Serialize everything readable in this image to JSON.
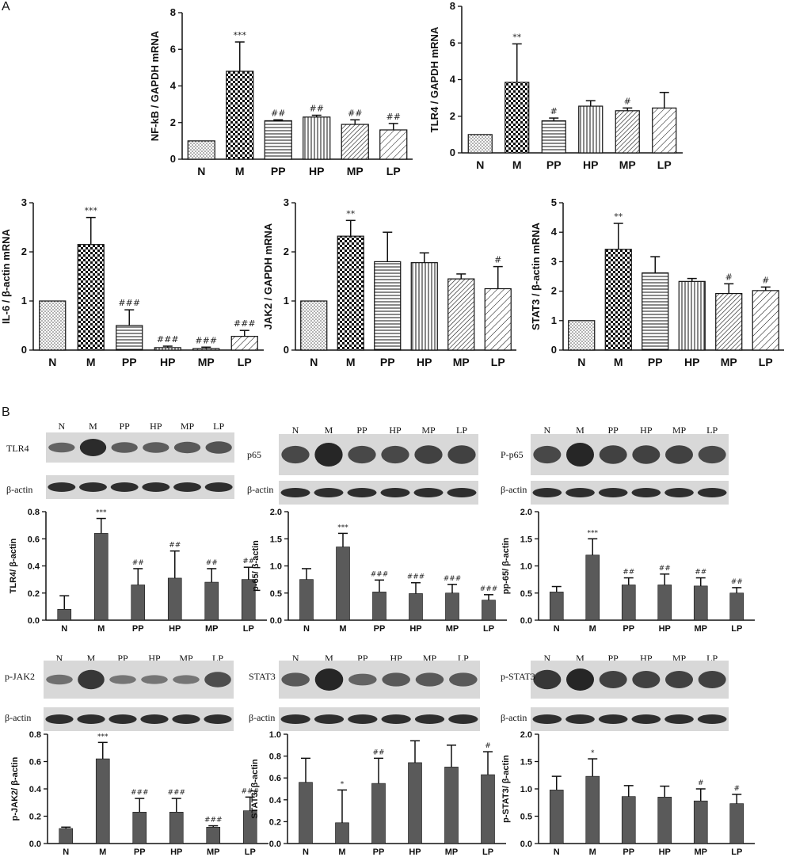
{
  "panel_labels": {
    "a": "A",
    "b": "B"
  },
  "colors": {
    "qpcr_bar_stroke": "#111111",
    "western_bar_fill": "#5a5a5a",
    "axis": "#111111",
    "blot_bg": "#d8d8d8",
    "band": "#1c1c1c"
  },
  "groups": [
    "N",
    "M",
    "PP",
    "HP",
    "MP",
    "LP"
  ],
  "patterns": [
    "fine-dots",
    "checker",
    "horizontal-lines",
    "vertical-lines",
    "diagonal-dense",
    "diagonal-sparse"
  ],
  "chart_data": [
    {
      "id": "nfkb",
      "type": "bar",
      "ylabel": "NF-kB / GAPDH mRNA",
      "ylim": [
        0,
        8
      ],
      "yticks": [
        0,
        2,
        4,
        6,
        8
      ],
      "categories": [
        "N",
        "M",
        "PP",
        "HP",
        "MP",
        "LP"
      ],
      "values": [
        1.0,
        4.8,
        2.1,
        2.3,
        1.9,
        1.6
      ],
      "errors": [
        0.0,
        1.6,
        0.05,
        0.1,
        0.25,
        0.35
      ],
      "annotations": [
        "",
        "***",
        "##",
        "##",
        "##",
        "##"
      ]
    },
    {
      "id": "tlr4_mrna",
      "type": "bar",
      "ylabel": "TLR4 / GAPDH mRNA",
      "ylim": [
        0,
        8
      ],
      "yticks": [
        0,
        2,
        4,
        6,
        8
      ],
      "categories": [
        "N",
        "M",
        "PP",
        "HP",
        "MP",
        "LP"
      ],
      "values": [
        1.0,
        3.85,
        1.75,
        2.55,
        2.3,
        2.45
      ],
      "errors": [
        0.0,
        2.1,
        0.15,
        0.3,
        0.15,
        0.85
      ],
      "annotations": [
        "",
        "**",
        "#",
        "",
        "#",
        ""
      ]
    },
    {
      "id": "il6",
      "type": "bar",
      "ylabel": "IL-6 / β-actin mRNA",
      "ylim": [
        0,
        3
      ],
      "yticks": [
        0,
        1,
        2,
        3
      ],
      "categories": [
        "N",
        "M",
        "PP",
        "HP",
        "MP",
        "LP"
      ],
      "values": [
        1.0,
        2.15,
        0.5,
        0.05,
        0.03,
        0.28
      ],
      "errors": [
        0.0,
        0.55,
        0.32,
        0.03,
        0.03,
        0.12
      ],
      "annotations": [
        "",
        "***",
        "###",
        "###",
        "###",
        "###"
      ]
    },
    {
      "id": "jak2_mrna",
      "type": "bar",
      "ylabel": "JAK2 / GAPDH mRNA",
      "ylim": [
        0,
        3
      ],
      "yticks": [
        0,
        1,
        2,
        3
      ],
      "categories": [
        "N",
        "M",
        "PP",
        "HP",
        "MP",
        "LP"
      ],
      "values": [
        1.0,
        2.32,
        1.8,
        1.78,
        1.45,
        1.25
      ],
      "errors": [
        0.0,
        0.32,
        0.6,
        0.2,
        0.1,
        0.45
      ],
      "annotations": [
        "",
        "**",
        "",
        "",
        "",
        "#"
      ]
    },
    {
      "id": "stat3_mrna",
      "type": "bar",
      "ylabel": "STAT3 / β-actin mRNA",
      "ylim": [
        0,
        5
      ],
      "yticks": [
        0,
        1,
        2,
        3,
        4,
        5
      ],
      "categories": [
        "N",
        "M",
        "PP",
        "HP",
        "MP",
        "LP"
      ],
      "values": [
        1.0,
        3.42,
        2.62,
        2.33,
        1.92,
        2.02
      ],
      "errors": [
        0.0,
        0.88,
        0.55,
        0.1,
        0.33,
        0.12
      ],
      "annotations": [
        "",
        "**",
        "",
        "",
        "#",
        "#"
      ]
    },
    {
      "id": "wb_tlr4",
      "type": "bar",
      "ylabel": "TLR4/ β-actin",
      "ylim": [
        0,
        0.8
      ],
      "yticks": [
        0.0,
        0.2,
        0.4,
        0.6,
        0.8
      ],
      "categories": [
        "N",
        "M",
        "PP",
        "HP",
        "MP",
        "LP"
      ],
      "values": [
        0.08,
        0.64,
        0.26,
        0.31,
        0.28,
        0.3
      ],
      "errors": [
        0.1,
        0.11,
        0.12,
        0.2,
        0.1,
        0.09
      ],
      "annotations": [
        "",
        "***",
        "##",
        "##",
        "##",
        "##"
      ]
    },
    {
      "id": "wb_p65",
      "type": "bar",
      "ylabel": "p-65/ β-actin",
      "ylim": [
        0,
        2.0
      ],
      "yticks": [
        0.0,
        0.5,
        1.0,
        1.5,
        2.0
      ],
      "categories": [
        "N",
        "M",
        "PP",
        "HP",
        "MP",
        "LP"
      ],
      "values": [
        0.75,
        1.35,
        0.52,
        0.49,
        0.5,
        0.37
      ],
      "errors": [
        0.2,
        0.25,
        0.22,
        0.2,
        0.16,
        0.1
      ],
      "annotations": [
        "",
        "***",
        "###",
        "###",
        "###",
        "###"
      ]
    },
    {
      "id": "wb_pp65",
      "type": "bar",
      "ylabel": "pp-65/ β-actin",
      "ylim": [
        0,
        2.0
      ],
      "yticks": [
        0.0,
        0.5,
        1.0,
        1.5,
        2.0
      ],
      "categories": [
        "N",
        "M",
        "PP",
        "HP",
        "MP",
        "LP"
      ],
      "values": [
        0.52,
        1.2,
        0.65,
        0.65,
        0.63,
        0.5
      ],
      "errors": [
        0.1,
        0.3,
        0.13,
        0.2,
        0.15,
        0.1
      ],
      "annotations": [
        "",
        "***",
        "##",
        "##",
        "##",
        "##"
      ]
    },
    {
      "id": "wb_pjak2",
      "type": "bar",
      "ylabel": "p-JAK2/ β-actin",
      "ylim": [
        0,
        0.8
      ],
      "yticks": [
        0.0,
        0.2,
        0.4,
        0.6,
        0.8
      ],
      "categories": [
        "N",
        "M",
        "PP",
        "HP",
        "MP",
        "LP"
      ],
      "values": [
        0.11,
        0.62,
        0.23,
        0.23,
        0.12,
        0.24
      ],
      "errors": [
        0.01,
        0.12,
        0.1,
        0.1,
        0.01,
        0.1
      ],
      "annotations": [
        "",
        "***",
        "###",
        "###",
        "###",
        "###"
      ]
    },
    {
      "id": "wb_stat3",
      "type": "bar",
      "ylabel": "STAT3/ β-actin",
      "ylim": [
        0,
        1.0
      ],
      "yticks": [
        0.0,
        0.2,
        0.4,
        0.6,
        0.8,
        1.0
      ],
      "categories": [
        "N",
        "M",
        "PP",
        "HP",
        "MP",
        "LP"
      ],
      "values": [
        0.56,
        0.19,
        0.55,
        0.74,
        0.7,
        0.63
      ],
      "errors": [
        0.22,
        0.3,
        0.23,
        0.2,
        0.2,
        0.21
      ],
      "annotations": [
        "",
        "*",
        "##",
        "",
        "",
        "#"
      ]
    },
    {
      "id": "wb_pstat3",
      "type": "bar",
      "ylabel": "p-STAT3/ β-actin",
      "ylim": [
        0,
        2.0
      ],
      "yticks": [
        0.0,
        0.5,
        1.0,
        1.5,
        2.0
      ],
      "categories": [
        "N",
        "M",
        "PP",
        "HP",
        "MP",
        "LP"
      ],
      "values": [
        0.98,
        1.23,
        0.86,
        0.85,
        0.78,
        0.73
      ],
      "errors": [
        0.25,
        0.32,
        0.2,
        0.2,
        0.22,
        0.17
      ],
      "annotations": [
        "",
        "*",
        "",
        "",
        "#",
        "#"
      ]
    }
  ],
  "blots": [
    {
      "id": "blot_tlr4",
      "lane_labels": [
        "N",
        "M",
        "PP",
        "HP",
        "MP",
        "LP"
      ],
      "target": "TLR4",
      "control": "β-actin",
      "target_intensity": [
        0.45,
        0.95,
        0.5,
        0.5,
        0.55,
        0.6
      ]
    },
    {
      "id": "blot_p65",
      "lane_labels": [
        "N",
        "M",
        "PP",
        "HP",
        "MP",
        "LP"
      ],
      "target": "p65",
      "control": "β-actin",
      "target_intensity": [
        0.7,
        1.0,
        0.7,
        0.7,
        0.75,
        0.75
      ]
    },
    {
      "id": "blot_pp65",
      "lane_labels": [
        "N",
        "M",
        "PP",
        "HP",
        "MP",
        "LP"
      ],
      "target": "P-p65",
      "control": "β-actin",
      "target_intensity": [
        0.7,
        1.0,
        0.75,
        0.75,
        0.75,
        0.7
      ]
    },
    {
      "id": "blot_pjak2",
      "lane_labels": [
        "N",
        "M",
        "PP",
        "HP",
        "MP",
        "LP"
      ],
      "target": "p-JAK2",
      "control": "β-actin",
      "target_intensity": [
        0.35,
        0.85,
        0.3,
        0.3,
        0.3,
        0.65
      ]
    },
    {
      "id": "blot_stat3",
      "lane_labels": [
        "N",
        "M",
        "PP",
        "HP",
        "MP",
        "LP"
      ],
      "target": "STAT3",
      "control": "β-actin",
      "target_intensity": [
        0.55,
        1.0,
        0.45,
        0.55,
        0.55,
        0.55
      ]
    },
    {
      "id": "blot_pstat3",
      "lane_labels": [
        "N",
        "M",
        "PP",
        "HP",
        "MP",
        "LP"
      ],
      "target": "p-STAT3",
      "control": "β-actin",
      "target_intensity": [
        0.85,
        1.0,
        0.75,
        0.75,
        0.75,
        0.75
      ]
    }
  ]
}
